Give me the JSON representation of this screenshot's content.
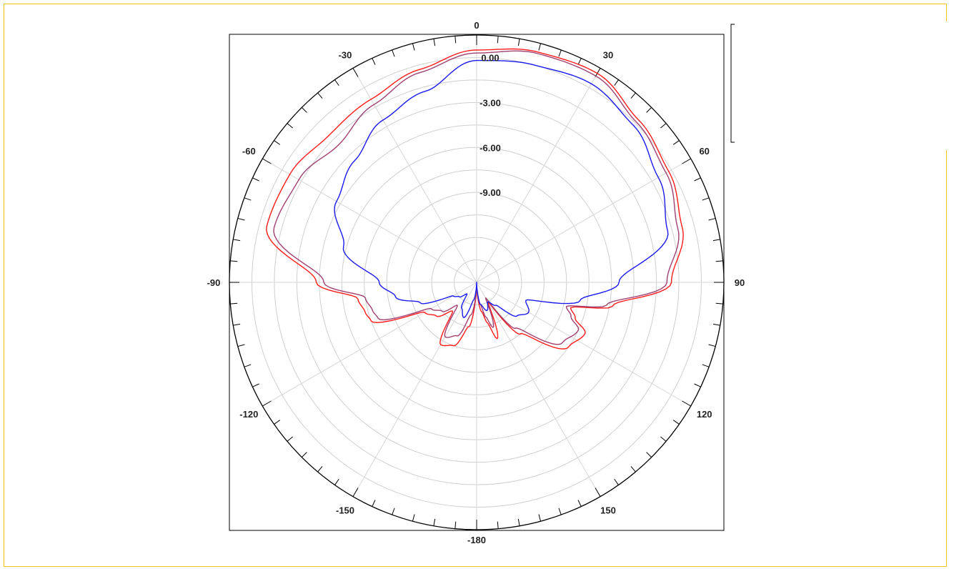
{
  "chart_data": {
    "type": "polar-line",
    "angle_ticks": [
      "0",
      "30",
      "60",
      "90",
      "120",
      "150",
      "-180",
      "-150",
      "-120",
      "-90",
      "-60",
      "-30"
    ],
    "radial_ticks": [
      "0.00",
      "-3.00",
      "-6.00",
      "-9.00"
    ],
    "radial_range": [
      -15,
      1.5
    ],
    "angle_grid_step_deg": 30,
    "minor_tick_step_deg": 5,
    "grid": true,
    "series": [
      {
        "color": "#ff1a1a",
        "points": [
          [
            0,
            0.5
          ],
          [
            15,
            0.9
          ],
          [
            30,
            1.1
          ],
          [
            45,
            0.3
          ],
          [
            60,
            -0.2
          ],
          [
            75,
            -0.8
          ],
          [
            90,
            -2.0
          ],
          [
            100,
            -5.8
          ],
          [
            105,
            -8.5
          ],
          [
            110,
            -8.0
          ],
          [
            115,
            -7.0
          ],
          [
            125,
            -7.5
          ],
          [
            140,
            -10.5
          ],
          [
            150,
            -13.5
          ],
          [
            160,
            -11.0
          ],
          [
            165,
            -12.2
          ],
          [
            170,
            -13.0
          ],
          [
            180,
            -14.6
          ],
          [
            190,
            -12.0
          ],
          [
            200,
            -10.5
          ],
          [
            210,
            -10.2
          ],
          [
            220,
            -12.5
          ],
          [
            230,
            -11.5
          ],
          [
            240,
            -11.0
          ],
          [
            250,
            -7.5
          ],
          [
            255,
            -7.3
          ],
          [
            262,
            -7.0
          ],
          [
            270,
            -4.3
          ],
          [
            285,
            -0.5
          ],
          [
            300,
            -0.6
          ],
          [
            315,
            -1.1
          ],
          [
            330,
            -0.9
          ],
          [
            345,
            -0.3
          ]
        ]
      },
      {
        "color": "#a04070",
        "points": [
          [
            0,
            0.3
          ],
          [
            15,
            0.8
          ],
          [
            30,
            0.9
          ],
          [
            45,
            0.1
          ],
          [
            60,
            -0.4
          ],
          [
            75,
            -1.1
          ],
          [
            90,
            -2.3
          ],
          [
            100,
            -6.2
          ],
          [
            105,
            -8.8
          ],
          [
            110,
            -8.3
          ],
          [
            115,
            -7.5
          ],
          [
            125,
            -8.0
          ],
          [
            140,
            -11.0
          ],
          [
            150,
            -13.8
          ],
          [
            160,
            -11.8
          ],
          [
            165,
            -12.6
          ],
          [
            170,
            -13.5
          ],
          [
            180,
            -14.6
          ],
          [
            190,
            -12.8
          ],
          [
            200,
            -11.2
          ],
          [
            210,
            -10.8
          ],
          [
            220,
            -13.0
          ],
          [
            230,
            -12.0
          ],
          [
            240,
            -11.5
          ],
          [
            250,
            -8.0
          ],
          [
            255,
            -7.8
          ],
          [
            262,
            -7.5
          ],
          [
            270,
            -4.8
          ],
          [
            285,
            -1.0
          ],
          [
            300,
            -1.3
          ],
          [
            315,
            -2.0
          ],
          [
            330,
            -1.3
          ],
          [
            345,
            -0.5
          ]
        ]
      },
      {
        "color": "#1a1aee",
        "points": [
          [
            0,
            -0.2
          ],
          [
            15,
            0.0
          ],
          [
            30,
            0.3
          ],
          [
            45,
            -0.2
          ],
          [
            60,
            -1.0
          ],
          [
            75,
            -1.8
          ],
          [
            90,
            -5.5
          ],
          [
            100,
            -8.0
          ],
          [
            110,
            -11.5
          ],
          [
            120,
            -11.0
          ],
          [
            130,
            -11.5
          ],
          [
            140,
            -13.0
          ],
          [
            150,
            -13.5
          ],
          [
            160,
            -13.0
          ],
          [
            170,
            -13.5
          ],
          [
            180,
            -15.0
          ],
          [
            190,
            -13.8
          ],
          [
            200,
            -12.5
          ],
          [
            210,
            -13.0
          ],
          [
            220,
            -14.0
          ],
          [
            230,
            -13.5
          ],
          [
            240,
            -13.2
          ],
          [
            250,
            -11.0
          ],
          [
            260,
            -9.5
          ],
          [
            270,
            -8.5
          ],
          [
            285,
            -5.8
          ],
          [
            300,
            -4.2
          ],
          [
            315,
            -3.5
          ],
          [
            330,
            -2.5
          ],
          [
            345,
            -1.8
          ]
        ]
      }
    ]
  },
  "legend": {
    "entries": []
  }
}
